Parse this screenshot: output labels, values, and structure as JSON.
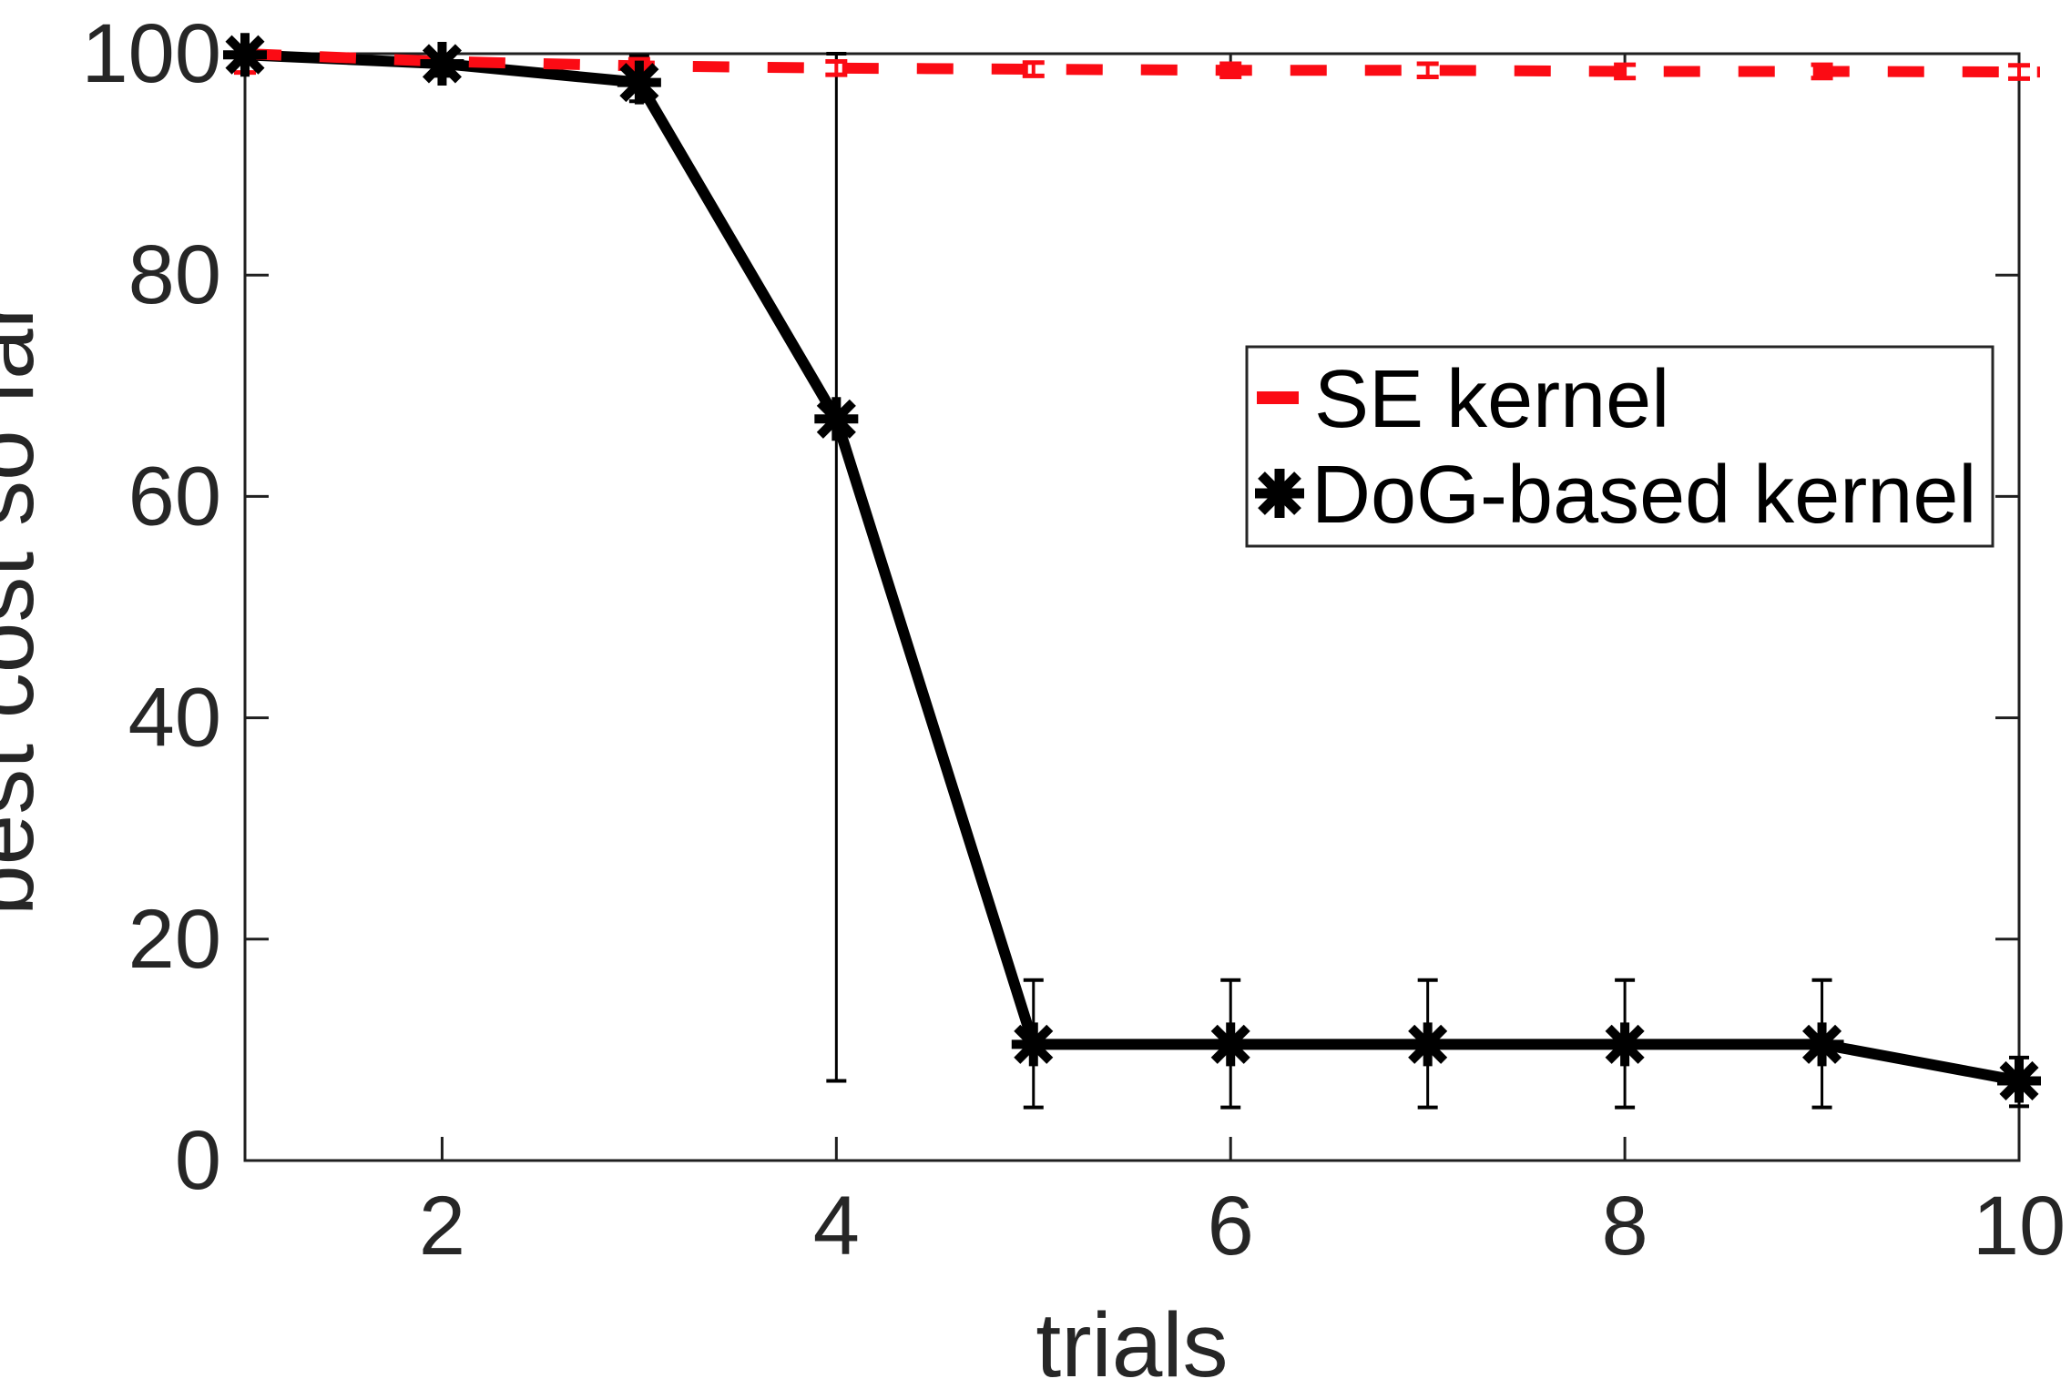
{
  "figure": {
    "background": "#ffffff",
    "text_color": "#262626",
    "axis_color": "#1f1f1f"
  },
  "chart_data": {
    "type": "line",
    "title": "",
    "xlabel": "trials",
    "ylabel": "best cost so far",
    "xlim": [
      1,
      10
    ],
    "ylim": [
      0,
      100
    ],
    "xticks": [
      2,
      4,
      6,
      8,
      10
    ],
    "yticks": [
      0,
      20,
      40,
      60,
      80,
      100
    ],
    "grid": false,
    "box": true,
    "tick_direction": "in",
    "legend": {
      "position": "upper right",
      "entries": [
        "SE kernel",
        "DoG-based kernel"
      ]
    },
    "x": [
      1,
      2,
      3,
      4,
      5,
      6,
      7,
      8,
      9,
      10
    ],
    "series": [
      {
        "name": "SE kernel",
        "color": "#fb0b14",
        "style": "dashed",
        "marker": "none",
        "values": [
          100,
          99.3,
          98.9,
          98.7,
          98.6,
          98.5,
          98.5,
          98.4,
          98.4,
          98.35
        ],
        "err_low": [
          1.7,
          0.6,
          0.6,
          0.6,
          0.6,
          0.6,
          0.6,
          0.6,
          0.6,
          0.6
        ],
        "err_high": [
          0.0,
          0.6,
          0.6,
          0.6,
          0.6,
          0.6,
          0.6,
          0.6,
          0.6,
          0.6
        ]
      },
      {
        "name": "DoG-based kernel",
        "color": "#000000",
        "style": "solid",
        "marker": "asterisk",
        "values": [
          99.9,
          99.1,
          97.4,
          67,
          10.5,
          10.5,
          10.5,
          10.5,
          10.5,
          7.2
        ],
        "err_low": [
          1.6,
          1.1,
          1.7,
          59.8,
          5.7,
          5.7,
          5.7,
          5.7,
          5.7,
          2.3
        ],
        "err_high": [
          0.1,
          0.4,
          2.4,
          33.0,
          5.8,
          5.8,
          5.8,
          5.8,
          5.8,
          2.1
        ]
      }
    ]
  }
}
